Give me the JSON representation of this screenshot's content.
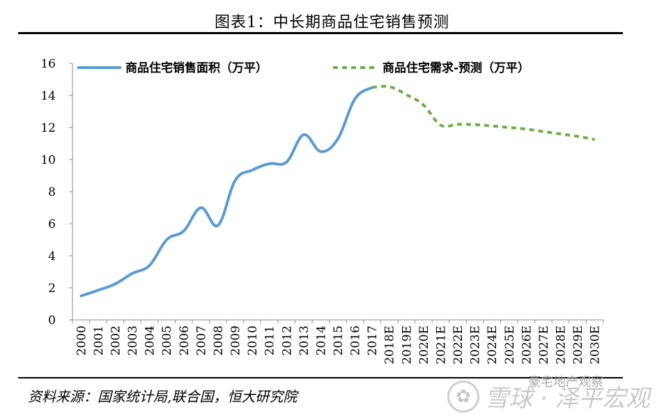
{
  "header": {
    "title": "图表1：中长期商品住宅销售预测"
  },
  "footer": {
    "source": "资料来源：国家统计局,联合国，恒大研究院"
  },
  "watermark": {
    "logo": "✿",
    "text": "雪球 · 泽平宏观",
    "sub": "豪宅地产观察"
  },
  "chart_data": {
    "type": "line",
    "title": "中长期商品住宅销售预测",
    "xlabel": "",
    "ylabel": "",
    "ylim": [
      0,
      16
    ],
    "yticks": [
      0,
      2,
      4,
      6,
      8,
      10,
      12,
      14,
      16
    ],
    "categories": [
      "2000",
      "2001",
      "2002",
      "2003",
      "2004",
      "2005",
      "2006",
      "2007",
      "2008",
      "2009",
      "2010",
      "2011",
      "2012",
      "2013",
      "2014",
      "2015",
      "2016",
      "2017",
      "2018E",
      "2019E",
      "2020E",
      "2021E",
      "2022E",
      "2023E",
      "2024E",
      "2025E",
      "2026E",
      "2027E",
      "2028E",
      "2029E",
      "2030E"
    ],
    "legend_position": "top",
    "series": [
      {
        "name": "商品住宅销售面积（万平）",
        "style": "solid",
        "color": "#5B9BD5",
        "values": [
          1.5,
          1.85,
          2.25,
          2.9,
          3.4,
          5.0,
          5.55,
          7.0,
          5.9,
          8.7,
          9.35,
          9.75,
          9.85,
          11.55,
          10.5,
          11.3,
          13.8,
          14.5,
          null,
          null,
          null,
          null,
          null,
          null,
          null,
          null,
          null,
          null,
          null,
          null,
          null
        ]
      },
      {
        "name": "商品住宅需求-预测（万平）",
        "style": "dashed",
        "color": "#70AD47",
        "values": [
          null,
          null,
          null,
          null,
          null,
          null,
          null,
          null,
          null,
          null,
          null,
          null,
          null,
          null,
          null,
          null,
          null,
          14.5,
          14.55,
          14.05,
          13.4,
          12.15,
          12.2,
          12.18,
          12.1,
          12.0,
          11.9,
          11.75,
          11.6,
          11.45,
          11.25
        ]
      }
    ]
  }
}
